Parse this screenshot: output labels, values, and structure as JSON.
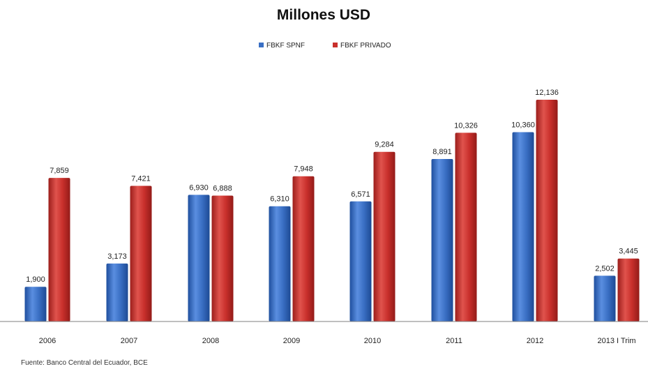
{
  "chart_data": {
    "type": "bar",
    "title": "Millones USD",
    "xlabel": "",
    "ylabel": "",
    "categories": [
      "2006",
      "2007",
      "2008",
      "2009",
      "2010",
      "2011",
      "2012",
      "2013 I Trim"
    ],
    "series": [
      {
        "name": "FBKF SPNF",
        "color": "#3a6fc4",
        "values": [
          1900,
          3173,
          6930,
          6310,
          6571,
          8891,
          10360,
          2502
        ],
        "labels": [
          "1,900",
          "3,173",
          "6,930",
          "6,310",
          "6,571",
          "8,891",
          "10,360",
          "2,502"
        ]
      },
      {
        "name": "FBKF PRIVADO",
        "color": "#c9302c",
        "values": [
          7859,
          7421,
          6888,
          7948,
          9284,
          10326,
          12136,
          3445
        ],
        "labels": [
          "7,859",
          "7,421",
          "6,888",
          "7,948",
          "9,284",
          "10,326",
          "12,136",
          "3,445"
        ]
      }
    ],
    "ylim": [
      0,
      12136
    ],
    "grid": false,
    "y_axis_visible": false,
    "legend_position": "top-center",
    "source": "Fuente: Banco Central del Ecuador, BCE"
  }
}
